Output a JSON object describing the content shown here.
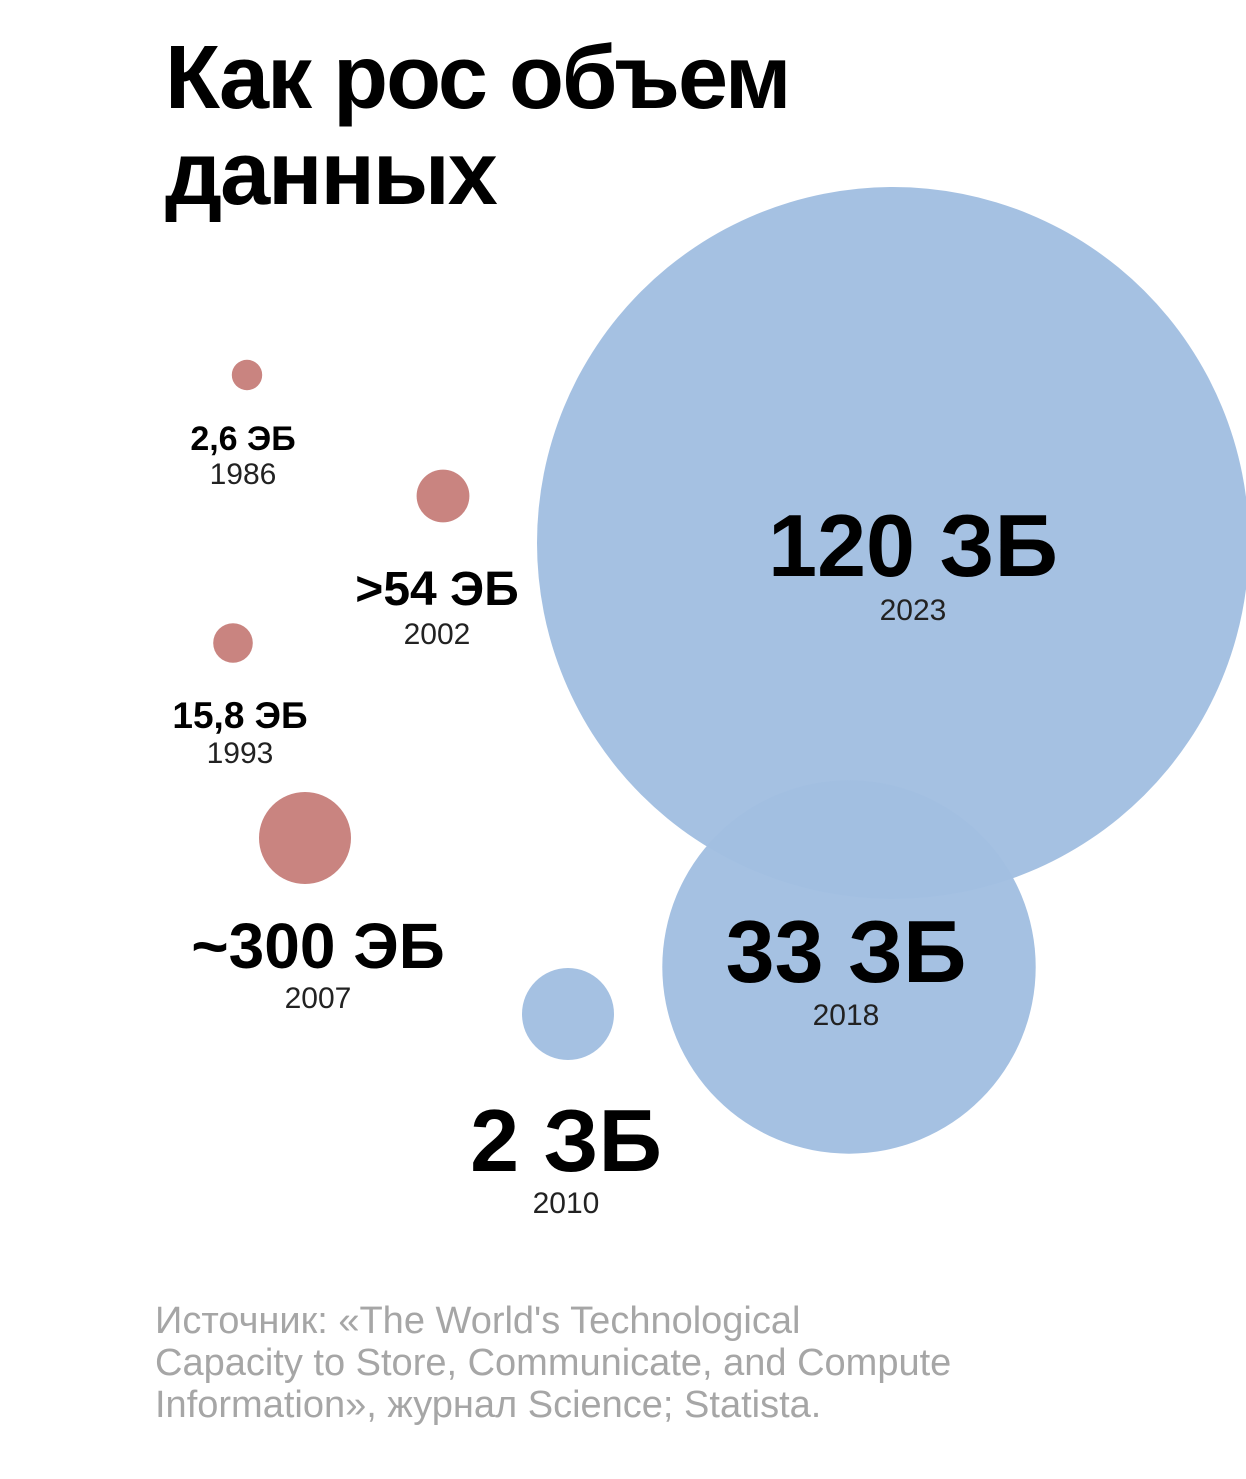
{
  "title_line1": "Как рос объем",
  "title_line2": "данных",
  "source_text": "Источник: «The World's Technological Capacity to Store, Communicate, and Compute Information», журнал Science; Statista.",
  "colors": {
    "exabyte_bubble": "#c98480",
    "zettabyte_bubble": "#a2bfe1",
    "text": "#000000",
    "source_text": "#a6a6a6"
  },
  "chart_data": {
    "type": "bubble",
    "title": "Как рос объем данных",
    "points": [
      {
        "year": "1986",
        "label": "2,6 ЭБ",
        "value": 2.6,
        "unit": "ЭБ",
        "value_eb": 2.6,
        "color": "#c98480"
      },
      {
        "year": "1993",
        "label": "15,8 ЭБ",
        "value": 15.8,
        "unit": "ЭБ",
        "value_eb": 15.8,
        "color": "#c98480"
      },
      {
        "year": "2002",
        "label": ">54 ЭБ",
        "value": 54,
        "unit": "ЭБ",
        "value_eb": 54,
        "color": "#c98480"
      },
      {
        "year": "2007",
        "label": "~300 ЭБ",
        "value": 300,
        "unit": "ЭБ",
        "value_eb": 300,
        "color": "#c98480"
      },
      {
        "year": "2010",
        "label": "2 ЗБ",
        "value": 2,
        "unit": "ЗБ",
        "value_eb": 2000,
        "color": "#a2bfe1"
      },
      {
        "year": "2018",
        "label": "33 ЗБ",
        "value": 33,
        "unit": "ЗБ",
        "value_eb": 33000,
        "color": "#a2bfe1"
      },
      {
        "year": "2023",
        "label": "120 ЗБ",
        "value": 120,
        "unit": "ЗБ",
        "value_eb": 120000,
        "color": "#a2bfe1"
      }
    ]
  }
}
